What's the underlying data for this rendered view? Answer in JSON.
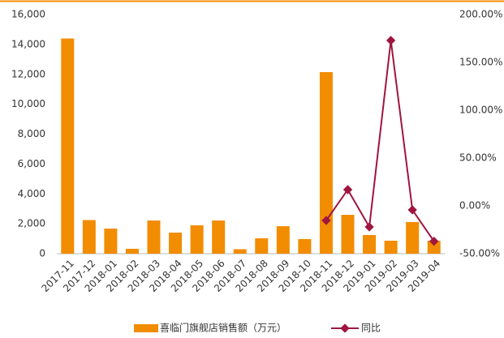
{
  "chart_data": {
    "type": "bar_line",
    "categories": [
      "2017-11",
      "2017-12",
      "2018-01",
      "2018-02",
      "2018-03",
      "2018-04",
      "2018-05",
      "2018-06",
      "2018-07",
      "2018-08",
      "2018-09",
      "2018-10",
      "2018-11",
      "2018-12",
      "2019-01",
      "2019-02",
      "2019-03",
      "2019-04"
    ],
    "series": [
      {
        "name": "喜临门旗舰店销售额（万元）",
        "color": "#f28c00",
        "type": "bar",
        "values": [
          14400,
          2250,
          1680,
          330,
          2220,
          1410,
          1900,
          2220,
          300,
          1030,
          1840,
          980,
          12150,
          2600,
          1250,
          870,
          2120,
          870
        ]
      },
      {
        "name": "同比",
        "color": "#a0153e",
        "type": "line",
        "axis": "y2",
        "values": [
          null,
          null,
          null,
          null,
          null,
          null,
          null,
          null,
          null,
          null,
          null,
          null,
          -15.3,
          17.0,
          -22.0,
          173.0,
          -4.2,
          -37.0
        ]
      }
    ],
    "ylim": [
      0,
      16000
    ],
    "yticks": [
      0,
      {
        "value": 2000,
        "label": "2,000"
      },
      {
        "value": 4000,
        "label": "4,000"
      },
      {
        "value": 6000,
        "label": "6,000"
      },
      {
        "value": 8000,
        "label": "8,000"
      },
      {
        "value": 10000,
        "label": "10,000"
      },
      {
        "value": 12000,
        "label": "12,000"
      },
      {
        "value": 14000,
        "label": "14,000"
      },
      {
        "value": 16000,
        "label": "16,000"
      }
    ],
    "y2lim": [
      -50,
      200
    ],
    "y2ticks": [
      {
        "value": -50,
        "label": "-50.00%"
      },
      {
        "value": 0,
        "label": "0.00%"
      },
      {
        "value": 50,
        "label": "50.00%"
      },
      {
        "value": 100,
        "label": "100.00%"
      },
      {
        "value": 150,
        "label": "150.00%"
      },
      {
        "value": 200,
        "label": "200.00%"
      }
    ],
    "legend": "bottom"
  }
}
